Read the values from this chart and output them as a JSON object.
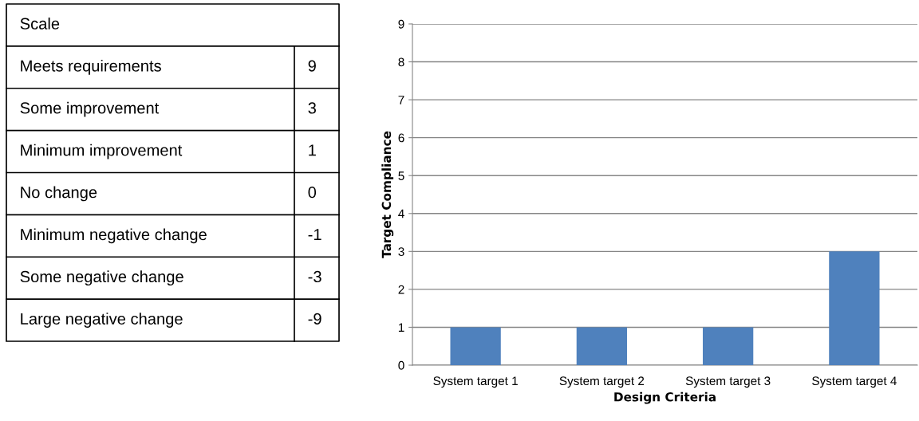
{
  "chart_data": [
    {
      "type": "other",
      "title": "Scale",
      "categories": [
        "Meets requirements",
        "Some improvement",
        "Minimum improvement",
        "No change",
        "Minimum negative change",
        "Some negative change",
        "Large negative change"
      ],
      "values": [
        9,
        3,
        1,
        0,
        -1,
        -3,
        -9
      ],
      "data_labels": true
    },
    {
      "type": "bar",
      "categories": [
        "System target 1",
        "System target 2",
        "System target 3",
        "System target 4"
      ],
      "values": [
        1,
        1,
        1,
        3
      ],
      "color": "#4f81bd",
      "xlabel": "Design Criteria",
      "ylabel": "Target Compliance",
      "ylim": [
        0,
        9
      ],
      "yticks": [
        0,
        1,
        2,
        3,
        4,
        5,
        6,
        7,
        8,
        9
      ],
      "grid": "y"
    }
  ]
}
